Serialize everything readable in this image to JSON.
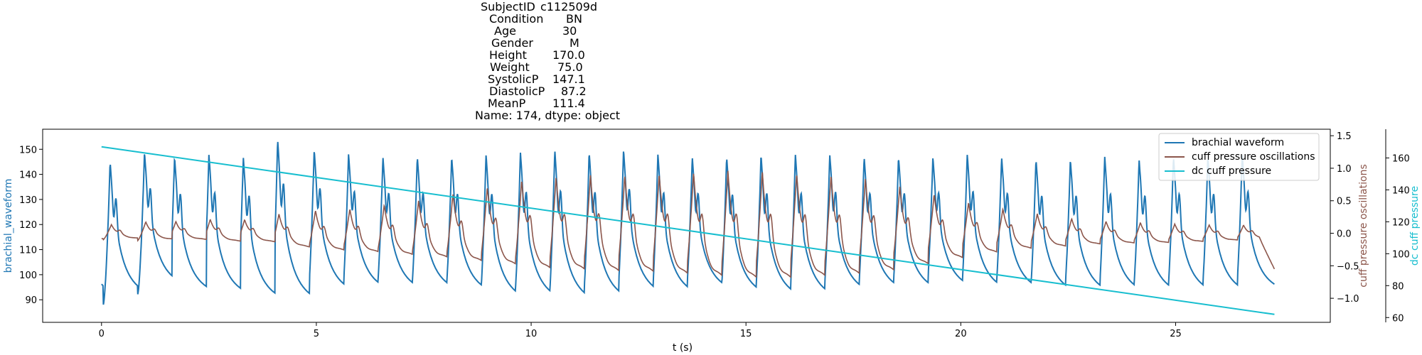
{
  "chart_data": {
    "type": "line",
    "title_lines": [
      {
        "key": "SubjectID",
        "value": "c112509d"
      },
      {
        "key": "Condition",
        "value": "BN"
      },
      {
        "key": "Age",
        "value": "30"
      },
      {
        "key": "Gender",
        "value": "M"
      },
      {
        "key": "Height",
        "value": "170.0"
      },
      {
        "key": "Weight",
        "value": "75.0"
      },
      {
        "key": "SystolicP",
        "value": "147.1"
      },
      {
        "key": "DiastolicP",
        "value": "87.2"
      },
      {
        "key": "MeanP",
        "value": "111.4"
      }
    ],
    "title_footer": "Name: 174, dtype: object",
    "xlabel": "t (s)",
    "x_range": [
      -1.37,
      28.6
    ],
    "x_ticks": [
      0,
      5,
      10,
      15,
      20,
      25
    ],
    "x_tick_labels": [
      "0",
      "5",
      "10",
      "15",
      "20",
      "25"
    ],
    "duration": 27.3,
    "heart_rate_period": 0.8,
    "left_axis": {
      "label": "brachial_waveform",
      "color": "#1f77b4",
      "range": [
        81,
        158
      ],
      "ticks": [
        90,
        100,
        110,
        120,
        130,
        140,
        150
      ],
      "tick_labels": [
        "90",
        "100",
        "110",
        "120",
        "130",
        "140",
        "150"
      ]
    },
    "right_axis_1": {
      "label": "cuff pressure oscillations",
      "color": "#8c564b",
      "range": [
        -1.37,
        1.6
      ],
      "ticks": [
        -1.0,
        -0.5,
        0.0,
        0.5,
        1.0,
        1.5
      ],
      "tick_labels": [
        "−1.0",
        "−0.5",
        "0.0",
        "0.5",
        "1.0",
        "1.5"
      ]
    },
    "right_axis_2": {
      "label": "dc cuff pressure",
      "color": "#17becf",
      "range": [
        57,
        178
      ],
      "ticks": [
        60,
        80,
        100,
        120,
        140,
        160
      ],
      "tick_labels": [
        "60",
        "80",
        "100",
        "120",
        "140",
        "160"
      ]
    },
    "legend_position": "upper-right",
    "series": [
      {
        "name": "brachial waveform",
        "axis": "left",
        "color": "#1f77b4",
        "description_values": {
          "systolic_peak_approx": 147,
          "diastolic_trough_approx": 88
        },
        "beat_peaks_t": [
          0.2,
          1.0,
          1.7,
          2.5,
          3.3,
          4.1,
          4.95,
          5.75,
          6.55,
          7.35,
          8.15,
          8.95,
          9.75,
          10.55,
          11.35,
          12.15,
          12.95,
          13.75,
          14.55,
          15.35,
          16.15,
          16.95,
          17.75,
          18.55,
          19.35,
          20.15,
          20.95,
          21.75,
          22.55,
          23.35,
          24.15,
          24.95,
          25.75,
          26.55
        ],
        "beat_peaks_y": [
          145,
          149,
          147,
          148,
          147,
          154,
          150,
          148,
          147,
          147,
          147,
          148,
          149,
          150,
          149,
          150,
          148,
          147,
          147,
          148,
          148,
          148,
          147,
          147,
          147,
          148,
          147,
          146,
          146,
          147,
          146,
          147,
          147,
          148
        ],
        "beat_troughs_y": [
          88,
          92,
          89,
          88,
          86,
          85,
          89,
          90,
          90,
          90,
          89,
          86,
          86,
          85,
          86,
          88,
          88,
          90,
          88,
          87,
          87,
          89,
          90,
          90,
          91,
          90,
          90,
          89,
          89,
          89,
          89,
          89,
          89,
          90
        ]
      },
      {
        "name": "cuff pressure oscillations",
        "axis": "right_1",
        "color": "#8c564b",
        "beat_amplitudes": [
          0.2,
          0.25,
          0.25,
          0.3,
          0.3,
          0.45,
          0.55,
          0.6,
          0.7,
          0.8,
          0.95,
          1.1,
          1.25,
          1.3,
          1.35,
          1.35,
          1.4,
          1.45,
          1.5,
          1.5,
          1.45,
          1.4,
          1.3,
          1.1,
          0.9,
          0.7,
          0.55,
          0.45,
          0.35,
          0.3,
          0.28,
          0.25,
          0.22,
          0.2
        ],
        "end_value": -0.55
      },
      {
        "name": "dc cuff pressure",
        "axis": "right_2",
        "color": "#17becf",
        "x": [
          0.0,
          27.3
        ],
        "y": [
          167,
          62
        ]
      }
    ]
  }
}
